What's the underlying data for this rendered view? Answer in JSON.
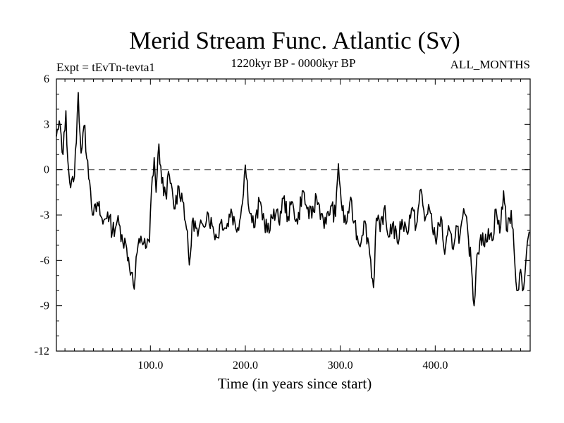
{
  "chart_data": {
    "type": "line",
    "title": "Merid Stream Func. Atlantic (Sv)",
    "subtitle": "1220kyr BP - 0000kyr BP",
    "left_label": "Expt = tEvTn-tevta1",
    "right_label": "ALL_MONTHS",
    "xlabel": "Time (in years since start)",
    "ylabel": "",
    "xlim": [
      1,
      500
    ],
    "ylim": [
      -12,
      6
    ],
    "x_ticks": [
      100,
      200,
      300,
      400
    ],
    "x_tick_labels": [
      "100.0",
      "200.0",
      "300.0",
      "400.0"
    ],
    "y_ticks": [
      6,
      3,
      0,
      -3,
      -6,
      -9,
      -12
    ],
    "y_tick_labels": [
      "6",
      "3",
      "0",
      "-3",
      "-6",
      "-9",
      "-12"
    ],
    "reference_line": 0,
    "series": [
      {
        "name": "Merid Stream Func. Atlantic",
        "anchors": [
          [
            1,
            2.2
          ],
          [
            5,
            2.9
          ],
          [
            8,
            1.0
          ],
          [
            11,
            3.9
          ],
          [
            13,
            0.6
          ],
          [
            16,
            -1.2
          ],
          [
            19,
            -0.8
          ],
          [
            22,
            1.8
          ],
          [
            24,
            5.1
          ],
          [
            27,
            1.1
          ],
          [
            30,
            2.9
          ],
          [
            34,
            0.6
          ],
          [
            37,
            -1.4
          ],
          [
            40,
            -3.0
          ],
          [
            45,
            -2.4
          ],
          [
            50,
            -3.6
          ],
          [
            55,
            -2.8
          ],
          [
            60,
            -4.1
          ],
          [
            65,
            -3.4
          ],
          [
            70,
            -4.3
          ],
          [
            75,
            -5.2
          ],
          [
            80,
            -6.8
          ],
          [
            83,
            -7.9
          ],
          [
            86,
            -5.5
          ],
          [
            90,
            -4.4
          ],
          [
            95,
            -5.2
          ],
          [
            99,
            -4.8
          ],
          [
            101,
            -1.5
          ],
          [
            104,
            0.8
          ],
          [
            106,
            -1.5
          ],
          [
            109,
            1.7
          ],
          [
            112,
            -0.9
          ],
          [
            116,
            -1.6
          ],
          [
            120,
            -0.4
          ],
          [
            125,
            -2.6
          ],
          [
            130,
            -1.1
          ],
          [
            135,
            -2.2
          ],
          [
            138,
            -3.9
          ],
          [
            141,
            -6.3
          ],
          [
            145,
            -3.2
          ],
          [
            150,
            -4.4
          ],
          [
            155,
            -3.6
          ],
          [
            160,
            -2.8
          ],
          [
            165,
            -3.7
          ],
          [
            170,
            -4.5
          ],
          [
            175,
            -3.3
          ],
          [
            180,
            -3.9
          ],
          [
            185,
            -2.6
          ],
          [
            190,
            -3.9
          ],
          [
            195,
            -3.1
          ],
          [
            200,
            0.3
          ],
          [
            205,
            -2.9
          ],
          [
            210,
            -3.8
          ],
          [
            215,
            -2.1
          ],
          [
            220,
            -3.4
          ],
          [
            225,
            -4.2
          ],
          [
            230,
            -2.6
          ],
          [
            235,
            -3.4
          ],
          [
            240,
            -1.9
          ],
          [
            245,
            -3.1
          ],
          [
            250,
            -2.2
          ],
          [
            255,
            -3.6
          ],
          [
            260,
            -1.4
          ],
          [
            265,
            -2.6
          ],
          [
            270,
            -3.2
          ],
          [
            275,
            -1.8
          ],
          [
            280,
            -2.9
          ],
          [
            285,
            -3.6
          ],
          [
            290,
            -2.4
          ],
          [
            295,
            -3.1
          ],
          [
            298,
            0.4
          ],
          [
            302,
            -2.7
          ],
          [
            306,
            -3.6
          ],
          [
            310,
            -2.2
          ],
          [
            315,
            -3.4
          ],
          [
            320,
            -5.0
          ],
          [
            325,
            -3.4
          ],
          [
            330,
            -4.9
          ],
          [
            335,
            -7.8
          ],
          [
            338,
            -3.2
          ],
          [
            342,
            -4.1
          ],
          [
            346,
            -2.6
          ],
          [
            350,
            -4.3
          ],
          [
            355,
            -3.6
          ],
          [
            360,
            -4.8
          ],
          [
            365,
            -3.3
          ],
          [
            370,
            -4.1
          ],
          [
            375,
            -2.6
          ],
          [
            380,
            -3.7
          ],
          [
            385,
            -1.3
          ],
          [
            389,
            -3.4
          ],
          [
            393,
            -2.3
          ],
          [
            397,
            -3.9
          ],
          [
            402,
            -4.4
          ],
          [
            406,
            -3.1
          ],
          [
            410,
            -5.6
          ],
          [
            415,
            -4.0
          ],
          [
            418,
            -5.2
          ],
          [
            422,
            -3.7
          ],
          [
            426,
            -4.4
          ],
          [
            431,
            -2.9
          ],
          [
            435,
            -4.6
          ],
          [
            438,
            -6.3
          ],
          [
            441,
            -9.0
          ],
          [
            444,
            -5.6
          ],
          [
            448,
            -4.3
          ],
          [
            452,
            -5.1
          ],
          [
            456,
            -3.9
          ],
          [
            460,
            -4.7
          ],
          [
            464,
            -2.6
          ],
          [
            468,
            -4.2
          ],
          [
            472,
            -1.4
          ],
          [
            476,
            -4.1
          ],
          [
            480,
            -2.7
          ],
          [
            484,
            -6.4
          ],
          [
            487,
            -8.0
          ],
          [
            490,
            -6.6
          ],
          [
            493,
            -7.9
          ],
          [
            496,
            -5.6
          ],
          [
            499,
            -4.1
          ]
        ]
      }
    ]
  }
}
